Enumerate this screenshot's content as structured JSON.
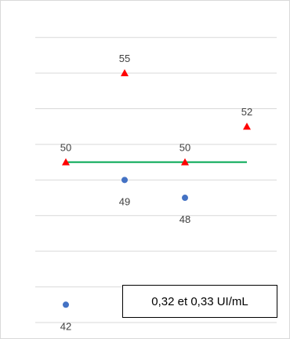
{
  "chart_data": {
    "type": "scatter",
    "ylim": [
      41,
      58
    ],
    "grid": true,
    "colors": {
      "triangle": "#ff0000",
      "circle": "#4472c4",
      "line": "#00a651",
      "grid": "#d9d9d9"
    },
    "series": [
      {
        "marker": "triangle",
        "points": [
          [
            1,
            50
          ],
          [
            2,
            55
          ],
          [
            3,
            50
          ],
          [
            4,
            52
          ]
        ],
        "labels": [
          "50",
          "55",
          "50",
          "52"
        ]
      },
      {
        "marker": "circle",
        "points": [
          [
            1,
            42
          ],
          [
            2,
            49
          ],
          [
            3,
            48
          ]
        ],
        "labels": [
          "42",
          "49",
          "48"
        ]
      }
    ],
    "reference_line": {
      "y": 50,
      "x_start": 1,
      "x_end": 4
    },
    "annotation": "0,32 et 0,33 UI/mL"
  }
}
